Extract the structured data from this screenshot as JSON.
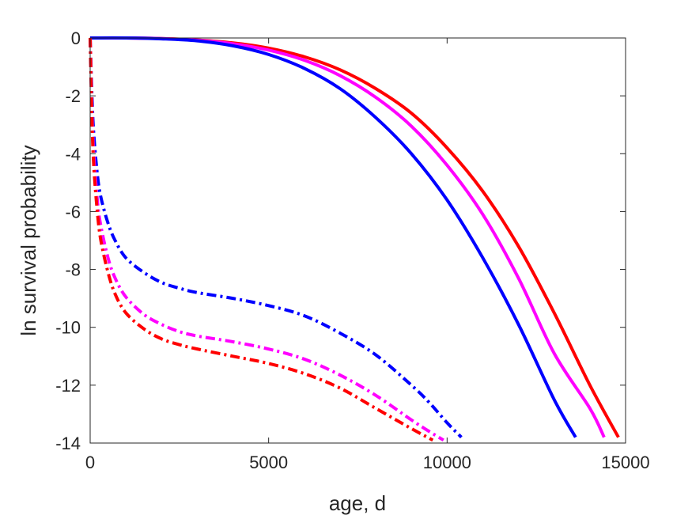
{
  "chart_data": {
    "type": "line",
    "title": "",
    "xlabel": "age, d",
    "ylabel": "ln survival probability",
    "xlim": [
      0,
      15000
    ],
    "ylim": [
      -14,
      0
    ],
    "xticks": [
      0,
      5000,
      10000,
      15000
    ],
    "yticks": [
      0,
      -2,
      -4,
      -6,
      -8,
      -10,
      -12,
      -14
    ],
    "xtick_labels": [
      "0",
      "5000",
      "10000",
      "15000"
    ],
    "ytick_labels": [
      "0",
      "-2",
      "-4",
      "-6",
      "-8",
      "-10",
      "-12",
      "-14"
    ],
    "grid": false,
    "legend": "none",
    "series": [
      {
        "color": "#ff0000",
        "style": "solid",
        "x": [
          0,
          1000,
          2000,
          3000,
          4000,
          5000,
          6000,
          7000,
          8000,
          9000,
          10000,
          11000,
          12000,
          13000,
          14000,
          14800
        ],
        "y": [
          0,
          0,
          -0.02,
          -0.07,
          -0.17,
          -0.35,
          -0.65,
          -1.1,
          -1.75,
          -2.6,
          -3.8,
          -5.3,
          -7.2,
          -9.5,
          -12.0,
          -13.8
        ]
      },
      {
        "color": "#ff00ff",
        "style": "solid",
        "x": [
          0,
          1000,
          2000,
          3000,
          4000,
          5000,
          6000,
          7000,
          8000,
          9000,
          10000,
          11000,
          12000,
          13000,
          14000,
          14400
        ],
        "y": [
          0,
          0,
          -0.02,
          -0.08,
          -0.2,
          -0.42,
          -0.77,
          -1.3,
          -2.05,
          -3.05,
          -4.4,
          -6.1,
          -8.3,
          -10.9,
          -12.8,
          -13.8
        ]
      },
      {
        "color": "#0000ff",
        "style": "solid",
        "x": [
          0,
          1000,
          2000,
          3000,
          4000,
          5000,
          6000,
          7000,
          8000,
          9000,
          10000,
          11000,
          12000,
          13000,
          13600
        ],
        "y": [
          0,
          0,
          -0.03,
          -0.1,
          -0.27,
          -0.57,
          -1.05,
          -1.75,
          -2.75,
          -4.0,
          -5.6,
          -7.6,
          -9.9,
          -12.5,
          -13.8
        ]
      },
      {
        "color": "#0000ff",
        "style": "dashdot",
        "x": [
          0,
          50,
          100,
          200,
          300,
          500,
          700,
          1000,
          1500,
          2000,
          2500,
          3000,
          4000,
          5000,
          6000,
          7000,
          8000,
          9000,
          9500,
          10000,
          10400
        ],
        "y": [
          0,
          -2.0,
          -3.3,
          -4.7,
          -5.5,
          -6.4,
          -7.0,
          -7.6,
          -8.1,
          -8.45,
          -8.65,
          -8.8,
          -9.0,
          -9.25,
          -9.6,
          -10.2,
          -10.95,
          -12.0,
          -12.6,
          -13.3,
          -13.8
        ]
      },
      {
        "color": "#ff00ff",
        "style": "dashdot",
        "x": [
          0,
          50,
          100,
          200,
          300,
          500,
          700,
          1000,
          1500,
          2000,
          2500,
          3000,
          4000,
          5000,
          6000,
          7000,
          8000,
          9000,
          9500,
          9900
        ],
        "y": [
          0,
          -2.5,
          -4.0,
          -5.6,
          -6.5,
          -7.6,
          -8.3,
          -8.95,
          -9.55,
          -9.9,
          -10.15,
          -10.3,
          -10.5,
          -10.75,
          -11.1,
          -11.65,
          -12.35,
          -13.2,
          -13.6,
          -13.9
        ]
      },
      {
        "color": "#ff0000",
        "style": "dashdot",
        "x": [
          0,
          50,
          100,
          200,
          300,
          500,
          700,
          1000,
          1500,
          2000,
          2500,
          3000,
          4000,
          5000,
          6000,
          7000,
          8000,
          9000,
          9600
        ],
        "y": [
          0,
          -2.8,
          -4.4,
          -6.0,
          -7.0,
          -8.1,
          -8.85,
          -9.5,
          -10.05,
          -10.4,
          -10.6,
          -10.75,
          -11.0,
          -11.25,
          -11.6,
          -12.1,
          -12.8,
          -13.5,
          -13.9
        ]
      }
    ]
  }
}
